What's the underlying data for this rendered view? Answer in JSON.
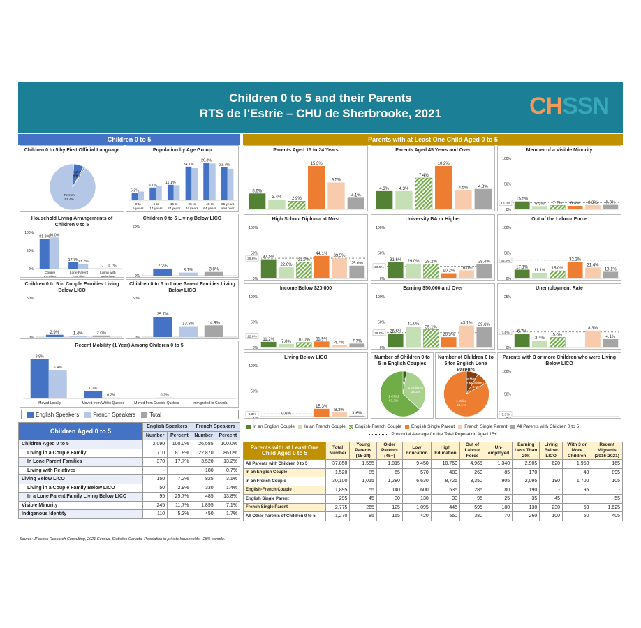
{
  "header": {
    "title": "Children 0 to 5 and their Parents",
    "subtitle": "RTS de l'Estrie – CHU de Sherbrooke, 2021",
    "logo_a": "CH",
    "logo_b": "SSN"
  },
  "left_section": "Children 0 to 5",
  "right_section": "Parents with at Least One Child Aged 0 to 5",
  "colors": {
    "eng": "#4472c4",
    "fr": "#b4c7e7",
    "tot": "#a5a5a5",
    "ec": "#548235",
    "fc": "#c5e0b4",
    "efc": "#70ad47",
    "es": "#ed7d31",
    "fs": "#f8cbad",
    "all": "#a5a5a5",
    "hdrL": "#4472c4",
    "hdrR": "#bf9000"
  },
  "left_legend": {
    "eng": "English Speakers",
    "fr": "French Speakers",
    "tot": "Total"
  },
  "right_legend": {
    "ec": "In an English Couple",
    "fc": "In an French Couple",
    "efc": "English-French Couple",
    "es": "English Single Parent",
    "fs": "French Single Parent",
    "all": "All Parents with Children 0 to 5",
    "avg": "Provincial Average for the Total Population Aged 15+"
  },
  "chart_data": [
    {
      "id": "lang",
      "type": "pie",
      "title": "Children 0 to 5 by First Official Language",
      "labels": [
        "French",
        "English",
        "Other"
      ],
      "values": [
        91.4,
        7.2,
        1.4
      ],
      "display": [
        "French\n91.4%",
        "English\n7.2%",
        "Other 1.4%"
      ]
    },
    {
      "id": "age",
      "type": "bar",
      "title": "Population by Age Group",
      "categories": [
        "0 to 5 years",
        "6 to 14 years",
        "15 to 24 years",
        "25 to 44 years",
        "45 to 64 years",
        "65 years and over"
      ],
      "series": [
        {
          "name": "English Speakers",
          "values": [
            5.2,
            9.1,
            11.1,
            24.1,
            26.8,
            23.7
          ]
        },
        {
          "name": "French Speakers",
          "values": [
            6.2,
            10.1,
            10.8,
            23.0,
            26.3,
            22.6
          ]
        }
      ],
      "labels": [
        "5.2%",
        "9.1%",
        "11.1%",
        "24.1%",
        "26.8%",
        "23.7%"
      ],
      "ymax": 30
    },
    {
      "id": "household",
      "type": "bar",
      "title": "Household Living Arrangements of Children 0 to 5",
      "categories": [
        "Couple Families",
        "Lone Parent Families",
        "Living with Relatives"
      ],
      "series": [
        {
          "name": "English Speakers",
          "values": [
            81.8,
            17.7,
            0
          ]
        },
        {
          "name": "French Speakers",
          "values": [
            86.0,
            13.2,
            0.7
          ]
        }
      ],
      "labels": [
        [
          "81.8%",
          "17.7%",
          "-"
        ],
        [
          "86.0%",
          "13.2%",
          "0.7%"
        ]
      ],
      "ylim": [
        0,
        100
      ],
      "ticks": [
        "100%",
        "50%",
        "0%"
      ]
    },
    {
      "id": "licoall",
      "type": "bar",
      "title": "Children 0 to 5 Living Below LICO",
      "categories": [
        ""
      ],
      "series": [
        {
          "name": "English Speakers",
          "values": [
            7.2
          ]
        },
        {
          "name": "French Speakers",
          "values": [
            3.1
          ]
        },
        {
          "name": "Total",
          "values": [
            3.8
          ]
        }
      ],
      "labels": [
        "7.2%",
        "3.1%",
        "3.8%"
      ],
      "ylim": [
        0,
        50
      ],
      "ticks": [
        "50%",
        "0%"
      ]
    },
    {
      "id": "licocouple",
      "type": "bar",
      "title": "Children 0 to 5 in Couple Families Living Below LICO",
      "categories": [
        ""
      ],
      "series": [
        {
          "name": "English Speakers",
          "values": [
            2.9
          ]
        },
        {
          "name": "French Speakers",
          "values": [
            1.4
          ]
        },
        {
          "name": "Total",
          "values": [
            2.0
          ]
        }
      ],
      "labels": [
        "2.9%",
        "1.4%",
        "2.0%"
      ],
      "ylim": [
        0,
        50
      ],
      "ticks": [
        "50%",
        "0%"
      ]
    },
    {
      "id": "licolone",
      "type": "bar",
      "title": "Children 0 to 5 in Lone Parent Families Living Below LICO",
      "categories": [
        ""
      ],
      "series": [
        {
          "name": "English Speakers",
          "values": [
            25.7
          ]
        },
        {
          "name": "French Speakers",
          "values": [
            13.8
          ]
        },
        {
          "name": "Total",
          "values": [
            14.9
          ]
        }
      ],
      "labels": [
        "25.7%",
        "13.8%",
        "14.9%"
      ],
      "ylim": [
        0,
        50
      ],
      "ticks": [
        "50%",
        "0%"
      ]
    },
    {
      "id": "mobility",
      "type": "bar",
      "title": "Recent Mobility (1 Year) Among Children 0 to 5",
      "categories": [
        "Moved Locally",
        "Moved from Within Quebec",
        "Moved from Outside Quebec",
        "Immigrated to Canada"
      ],
      "series": [
        {
          "name": "English Speakers",
          "values": [
            8.8,
            1.7,
            0,
            0
          ]
        },
        {
          "name": "French Speakers",
          "values": [
            6.4,
            0.2,
            0.2,
            0
          ]
        }
      ],
      "labels": [
        [
          "8.8%",
          "1.7%",
          "-",
          "-"
        ],
        [
          "6.4%",
          "0.2%",
          "0.2%",
          "-"
        ]
      ],
      "ymax": 10
    },
    {
      "id": "p1524",
      "type": "bar",
      "title": "Parents Aged 15 to 24 Years",
      "values": [
        5.6,
        3.4,
        2.9,
        15.3,
        9.5,
        4.1
      ],
      "labels": [
        "5.6%",
        "3.4%",
        "2.9%",
        "15.3%",
        "9.5%",
        "4.1%"
      ],
      "ymax": 18
    },
    {
      "id": "p45",
      "type": "bar",
      "title": "Parents Aged 45 Years and Over",
      "values": [
        4.3,
        4.3,
        7.4,
        10.2,
        4.5,
        4.8
      ],
      "labels": [
        "4.3%",
        "4.3%",
        "7.4%",
        "10.2%",
        "4.5%",
        "4.8%"
      ],
      "ymax": 12
    },
    {
      "id": "vm",
      "type": "bar",
      "title": "Member of a Visible Minority",
      "values": [
        15.5,
        6.5,
        7.7,
        6.8,
        8.3,
        8.8
      ],
      "labels": [
        "15.5%",
        "6.5%",
        "7.7%",
        "6.8%",
        "8.3%",
        "8.8%"
      ],
      "ylim": [
        0,
        100
      ],
      "ticks": [
        "100%",
        "50%",
        "0%"
      ],
      "avg": 13.0,
      "avglabel": "13.0%"
    },
    {
      "id": "hs",
      "type": "bar",
      "title": "High School Diploma at Most",
      "values": [
        37.5,
        22.0,
        31.7,
        44.1,
        39.5,
        25.0
      ],
      "labels": [
        "37.5%",
        "22.0%",
        "31.7%",
        "44.1%",
        "39.5%",
        "25.0%"
      ],
      "ylim": [
        0,
        100
      ],
      "ticks": [
        "100%",
        "50%",
        "0%"
      ],
      "avg": 39.6,
      "avglabel": "39.6%"
    },
    {
      "id": "uni",
      "type": "bar",
      "title": "University BA or Higher",
      "values": [
        31.6,
        29.0,
        28.2,
        10.2,
        16.0,
        28.4
      ],
      "labels": [
        "31.6%",
        "29.0%",
        "28.2%",
        "10.2%",
        "16.0%",
        "28.4%"
      ],
      "ylim": [
        0,
        100
      ],
      "ticks": [
        "100%",
        "50%",
        "0%"
      ],
      "avg": 23.5,
      "avglabel": "23.5%"
    },
    {
      "id": "olf",
      "type": "bar",
      "title": "Out of the Labour Force",
      "values": [
        17.1,
        11.1,
        15.0,
        32.2,
        21.4,
        13.1
      ],
      "labels": [
        "17.1%",
        "11.1%",
        "15.0%",
        "32.2%",
        "21.4%",
        "13.1%"
      ],
      "ylim": [
        0,
        100
      ],
      "ticks": [
        "100%",
        "50%",
        "0%"
      ],
      "avg": 35.9,
      "avglabel": "35.9%"
    },
    {
      "id": "inc20",
      "type": "bar",
      "title": "Income Below $20,000",
      "values": [
        11.2,
        7.0,
        10.0,
        11.9,
        4.7,
        7.7
      ],
      "labels": [
        "11.2%",
        "7.0%",
        "10.0%",
        "11.9%",
        "4.7%",
        "7.7%"
      ],
      "ylim": [
        0,
        100
      ],
      "ticks": [
        "100%",
        "50%",
        "0%"
      ],
      "avg": 22.6,
      "avglabel": "22.6%"
    },
    {
      "id": "inc50",
      "type": "bar",
      "title": "Earning $50,000 and Over",
      "values": [
        26.6,
        41.0,
        35.1,
        20.3,
        43.1,
        39.6
      ],
      "labels": [
        "26.6%",
        "41.0%",
        "35.1%",
        "20.3%",
        "43.1%",
        "39.6%"
      ],
      "ylim": [
        0,
        100
      ],
      "ticks": [
        "100%",
        "50%",
        "0%"
      ],
      "avg": 29.0,
      "avglabel": "29.0%"
    },
    {
      "id": "unemp",
      "type": "bar",
      "title": "Unemployment Rate",
      "values": [
        6.7,
        3.4,
        5.0,
        0,
        8.3,
        4.1
      ],
      "labels": [
        "6.7%",
        "3.4%",
        "5.0%",
        "-",
        "8.3%",
        "4.1%"
      ],
      "ylim": [
        0,
        25
      ],
      "ticks": [
        "25%",
        "0%"
      ],
      "avg": 7.6,
      "avglabel": "7.6%"
    },
    {
      "id": "plico",
      "type": "bar",
      "title": "Living Below LICO",
      "values": [
        0,
        0.6,
        0,
        15.3,
        8.3,
        1.6
      ],
      "labels": [
        "-",
        "0.6%",
        "-",
        "15.3%",
        "8.3%",
        "1.6%"
      ],
      "ylim": [
        0,
        100
      ],
      "ticks": [
        "100%",
        "50%",
        "0%"
      ],
      "avg": 5.3,
      "avglabel": "5.3%"
    },
    {
      "id": "piec",
      "type": "pie",
      "title": "Number of Children 0 to 5 in English Couples",
      "labels": [
        "1 Child",
        "2 Children",
        "3 or More"
      ],
      "values": [
        63.2,
        34.2,
        2.6
      ],
      "display": [
        "1 Child\n63.2%",
        "2 Children\n34.2%",
        "3 or More\n2.6%"
      ]
    },
    {
      "id": "pies",
      "type": "pie",
      "title": "Number of Children 0 to 5 for English Lone Parents",
      "labels": [
        "1 Child",
        "2 Children",
        "3 or More"
      ],
      "values": [
        83.1,
        8.5,
        8.5
      ],
      "display": [
        "1 Child\n83.1%",
        "2 Children\n8.5%",
        "3 or More\n8.5%"
      ]
    },
    {
      "id": "p3",
      "type": "bar",
      "title": "Parents with 3 or more Children who were Living Below LICO",
      "values": [
        0,
        0,
        0,
        0,
        0,
        0
      ],
      "labels": [
        "-",
        "-",
        "-",
        "-",
        "-",
        "-"
      ],
      "ylim": [
        0,
        100
      ],
      "ticks": [
        "100%",
        "50%",
        "0%"
      ],
      "avg": 5.3,
      "avglabel": "5.3%"
    }
  ],
  "left_table": {
    "title": "Children Aged 0 to 5",
    "groups": [
      "English Speakers",
      "French Speakers"
    ],
    "cols": [
      "Number",
      "Percent",
      "Number",
      "Percent"
    ],
    "rows": [
      {
        "l": "Children Aged 0 to 5",
        "v": [
          "2,090",
          "100.0%",
          "26,585",
          "100.0%"
        ],
        "b": true
      },
      {
        "l": "Living in a Couple Family",
        "v": [
          "1,710",
          "81.8%",
          "22,870",
          "86.0%"
        ],
        "i": 1
      },
      {
        "l": "In Lone Parent Families",
        "v": [
          "370",
          "17.7%",
          "3,520",
          "13.2%"
        ],
        "i": 1
      },
      {
        "l": "Living with Relatives",
        "v": [
          "-",
          "-",
          "180",
          "0.7%"
        ],
        "i": 1
      },
      {
        "l": "Living Below LICO",
        "v": [
          "150",
          "7.2%",
          "825",
          "3.1%"
        ]
      },
      {
        "l": "Living in a Couple Family Below LICO",
        "v": [
          "50",
          "2.9%",
          "330",
          "1.4%"
        ],
        "i": 1
      },
      {
        "l": "In a Lone Parent Family Living Below LICO",
        "v": [
          "95",
          "25.7%",
          "485",
          "13.8%"
        ],
        "i": 1
      },
      {
        "l": "Visible Minority",
        "v": [
          "245",
          "11.7%",
          "1,895",
          "7.1%"
        ]
      },
      {
        "l": "Indigenous Identity",
        "v": [
          "110",
          "5.3%",
          "450",
          "1.7%"
        ]
      }
    ]
  },
  "right_table": {
    "title": "Parents with at Least One Child Aged 0 to 5",
    "cols": [
      "Total Number",
      "Young Parents (15-24)",
      "Older Parents (45+)",
      "Low Education",
      "High Education",
      "Out of Labour Force",
      "Un-employed",
      "Earning Less Than 20k",
      "Living Below LICO",
      "With 3 or More Children",
      "Recent Migrants (2016-2021)"
    ],
    "rows": [
      {
        "l": "All Parents with Children 0 to 5",
        "v": [
          "37,850",
          "1,555",
          "1,815",
          "9,450",
          "10,760",
          "4,965",
          "1,340",
          "2,905",
          "620",
          "1,950",
          "165"
        ]
      },
      {
        "l": "In an English Couple",
        "v": [
          "1,520",
          "85",
          "65",
          "570",
          "480",
          "260",
          "85",
          "170",
          "-",
          "40",
          "895"
        ]
      },
      {
        "l": "In an French Couple",
        "v": [
          "30,100",
          "1,015",
          "1,280",
          "6,630",
          "8,725",
          "3,350",
          "905",
          "2,095",
          "190",
          "1,700",
          "105"
        ]
      },
      {
        "l": "English-French Couple",
        "v": [
          "1,895",
          "55",
          "140",
          "600",
          "535",
          "285",
          "80",
          "190",
          "-",
          "95",
          "-"
        ]
      },
      {
        "l": "English Single Parent",
        "v": [
          "295",
          "45",
          "30",
          "130",
          "30",
          "95",
          "25",
          "35",
          "45",
          "-",
          "55"
        ]
      },
      {
        "l": "French Single Parent",
        "v": [
          "2,775",
          "265",
          "125",
          "1,095",
          "445",
          "595",
          "180",
          "130",
          "230",
          "60",
          "1,625"
        ]
      },
      {
        "l": "All Other Parents of Children 0 to 5",
        "v": [
          "1,270",
          "85",
          "165",
          "420",
          "550",
          "380",
          "70",
          "260",
          "100",
          "50",
          "405"
        ]
      }
    ]
  },
  "source": "Source: JPocock Research Consulting, 2021 Census, Statistics Canada. Population in private households - 25% sample."
}
